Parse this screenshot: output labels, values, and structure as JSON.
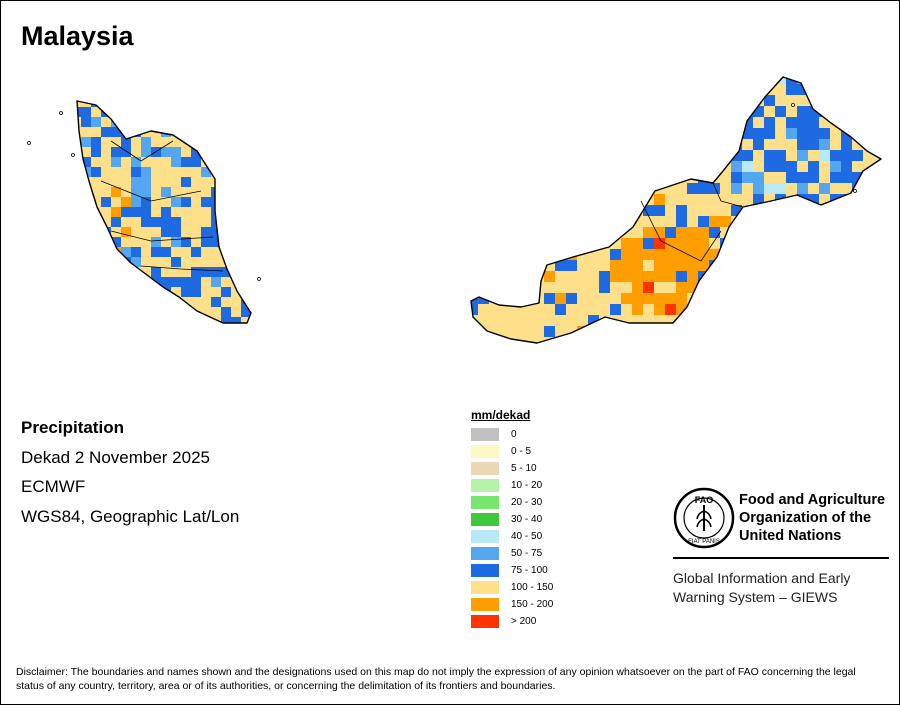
{
  "title": "Malaysia",
  "info": {
    "variable": "Precipitation",
    "period": "Dekad 2 November 2025",
    "model": "ECMWF",
    "projection": "WGS84, Geographic Lat/Lon"
  },
  "legend": {
    "title": "mm/dekad",
    "items": [
      {
        "label": "0",
        "color": "#c0c0c0"
      },
      {
        "label": "0 - 5",
        "color": "#fbf8c6"
      },
      {
        "label": "5 - 10",
        "color": "#ead8b9"
      },
      {
        "label": "10 - 20",
        "color": "#b6f2a9"
      },
      {
        "label": "20 - 30",
        "color": "#78e56f"
      },
      {
        "label": "30 - 40",
        "color": "#3ec83c"
      },
      {
        "label": "40 - 50",
        "color": "#b9e9f7"
      },
      {
        "label": "50 - 75",
        "color": "#55a6f0"
      },
      {
        "label": "75 - 100",
        "color": "#1e6ae2"
      },
      {
        "label": "100 - 150",
        "color": "#ffe08a"
      },
      {
        "label": "150 - 200",
        "color": "#ff9e00"
      },
      {
        "label": "> 200",
        "color": "#ff3300"
      }
    ]
  },
  "organization": {
    "name": "Food and Agriculture Organization of the United Nations",
    "system": "Global Information and Early Warning System – GIEWS",
    "logo_letters": "FAO",
    "logo_motto": "FIAT PANIS"
  },
  "disclaimer": "Disclaimer: The boundaries and names shown and the designations used on this map do not imply the expression of any opinion whatsoever on the part of FAO concerning the legal status of any country, territory, area or of its authorities, or concerning the delimitation of its frontiers and boundaries."
}
